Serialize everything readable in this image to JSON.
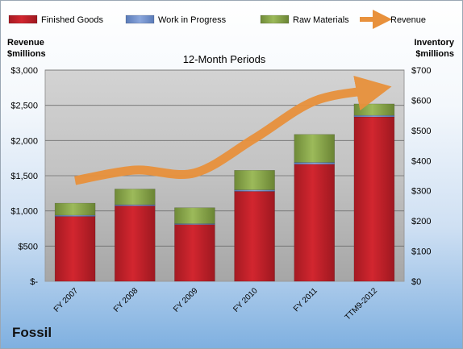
{
  "company": "Fossil",
  "chart_data": {
    "type": "bar",
    "title": "12-Month Periods",
    "categories": [
      "FY 2007",
      "FY 2008",
      "FY 2009",
      "FY 2010",
      "FY 2011",
      "TTM9-2012"
    ],
    "left_axis": {
      "label_line1": "Revenue",
      "label_line2": "$millions",
      "ylim": [
        0,
        3000
      ],
      "ticks": [
        0,
        500,
        1000,
        1500,
        2000,
        2500,
        3000
      ],
      "tick_labels": [
        "$-",
        "$500",
        "$1,000",
        "$1,500",
        "$2,000",
        "$2,500",
        "$3,000"
      ]
    },
    "right_axis": {
      "label_line1": "Inventory",
      "label_line2": "$millions",
      "ylim": [
        0,
        700
      ],
      "ticks": [
        0,
        100,
        200,
        300,
        400,
        500,
        600,
        700
      ],
      "tick_labels": [
        "$0",
        "$100",
        "$200",
        "$300",
        "$400",
        "$500",
        "$600",
        "$700"
      ]
    },
    "series": [
      {
        "name": "Finished Goods",
        "type": "bar",
        "axis": "right",
        "color": "#c8202a",
        "values": [
          215,
          250,
          188,
          298,
          388,
          545
        ]
      },
      {
        "name": "Work in Progress",
        "type": "bar",
        "axis": "right",
        "color": "#6f8fc8",
        "values": [
          4,
          4,
          3,
          5,
          6,
          5
        ]
      },
      {
        "name": "Raw Materials",
        "type": "bar",
        "axis": "right",
        "color": "#8aa84c",
        "values": [
          40,
          52,
          53,
          65,
          93,
          38
        ]
      },
      {
        "name": "Revenue",
        "type": "line",
        "axis": "left",
        "color": "#e8913c",
        "values": [
          1430,
          1580,
          1540,
          2030,
          2560,
          2720
        ]
      }
    ],
    "grid": true,
    "legend_position": "top"
  }
}
